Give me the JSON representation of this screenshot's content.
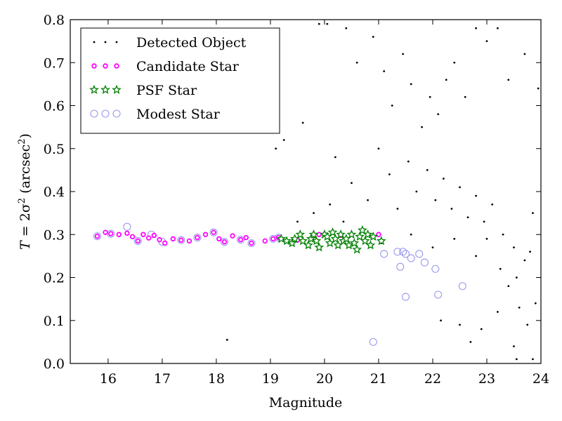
{
  "chart_data": {
    "type": "scatter",
    "xlabel": "Magnitude",
    "ylabel_parts": [
      "T",
      " = 2σ",
      "2",
      " (arcsec",
      "2",
      ")"
    ],
    "xlim": [
      15.3,
      24.0
    ],
    "ylim": [
      0.0,
      0.8
    ],
    "x_ticks": [
      "16",
      "17",
      "18",
      "19",
      "20",
      "21",
      "22",
      "23",
      "24"
    ],
    "y_ticks": [
      "0.0",
      "0.1",
      "0.2",
      "0.3",
      "0.4",
      "0.5",
      "0.6",
      "0.7",
      "0.8"
    ],
    "legend_location": "upper-left",
    "series": [
      {
        "name": "Detected Object",
        "marker": "dot",
        "color": "#000000",
        "note_sampled": true,
        "points": [
          [
            18.2,
            0.055
          ],
          [
            19.1,
            0.5
          ],
          [
            19.25,
            0.52
          ],
          [
            19.6,
            0.56
          ],
          [
            19.9,
            0.79
          ],
          [
            20.05,
            0.79
          ],
          [
            20.4,
            0.78
          ],
          [
            20.6,
            0.7
          ],
          [
            20.9,
            0.76
          ],
          [
            21.1,
            0.68
          ],
          [
            21.25,
            0.6
          ],
          [
            21.45,
            0.72
          ],
          [
            21.6,
            0.65
          ],
          [
            21.8,
            0.55
          ],
          [
            21.95,
            0.62
          ],
          [
            22.1,
            0.58
          ],
          [
            22.25,
            0.66
          ],
          [
            22.4,
            0.7
          ],
          [
            22.6,
            0.62
          ],
          [
            22.8,
            0.78
          ],
          [
            23.0,
            0.75
          ],
          [
            23.2,
            0.78
          ],
          [
            23.4,
            0.66
          ],
          [
            23.7,
            0.72
          ],
          [
            23.95,
            0.64
          ],
          [
            20.2,
            0.48
          ],
          [
            20.5,
            0.42
          ],
          [
            20.8,
            0.38
          ],
          [
            21.0,
            0.5
          ],
          [
            21.2,
            0.44
          ],
          [
            21.35,
            0.36
          ],
          [
            21.55,
            0.47
          ],
          [
            21.7,
            0.4
          ],
          [
            21.9,
            0.45
          ],
          [
            22.05,
            0.38
          ],
          [
            22.2,
            0.43
          ],
          [
            22.35,
            0.36
          ],
          [
            22.5,
            0.41
          ],
          [
            22.65,
            0.34
          ],
          [
            22.8,
            0.39
          ],
          [
            22.95,
            0.33
          ],
          [
            23.1,
            0.37
          ],
          [
            23.3,
            0.3
          ],
          [
            23.5,
            0.27
          ],
          [
            23.7,
            0.24
          ],
          [
            23.85,
            0.35
          ],
          [
            23.4,
            0.18
          ],
          [
            23.6,
            0.13
          ],
          [
            23.75,
            0.09
          ],
          [
            23.5,
            0.04
          ],
          [
            23.55,
            0.01
          ],
          [
            23.85,
            0.01
          ],
          [
            22.7,
            0.05
          ],
          [
            22.5,
            0.09
          ],
          [
            22.15,
            0.1
          ],
          [
            22.9,
            0.08
          ],
          [
            23.2,
            0.12
          ],
          [
            23.9,
            0.14
          ],
          [
            19.5,
            0.33
          ],
          [
            19.8,
            0.35
          ],
          [
            20.1,
            0.37
          ],
          [
            20.35,
            0.33
          ],
          [
            20.7,
            0.31
          ],
          [
            21.05,
            0.28
          ],
          [
            21.6,
            0.3
          ],
          [
            22.0,
            0.27
          ],
          [
            22.4,
            0.29
          ],
          [
            22.8,
            0.25
          ],
          [
            23.0,
            0.29
          ],
          [
            23.25,
            0.22
          ],
          [
            23.55,
            0.2
          ],
          [
            23.8,
            0.26
          ]
        ]
      },
      {
        "name": "Candidate Star",
        "marker": "small-circle",
        "color": "#ff00ff",
        "points": [
          [
            15.8,
            0.296
          ],
          [
            15.95,
            0.305
          ],
          [
            16.05,
            0.302
          ],
          [
            16.2,
            0.3
          ],
          [
            16.35,
            0.303
          ],
          [
            16.45,
            0.295
          ],
          [
            16.55,
            0.285
          ],
          [
            16.65,
            0.3
          ],
          [
            16.75,
            0.292
          ],
          [
            16.85,
            0.298
          ],
          [
            16.95,
            0.288
          ],
          [
            17.05,
            0.28
          ],
          [
            17.2,
            0.29
          ],
          [
            17.35,
            0.287
          ],
          [
            17.5,
            0.285
          ],
          [
            17.65,
            0.293
          ],
          [
            17.8,
            0.3
          ],
          [
            17.95,
            0.305
          ],
          [
            18.05,
            0.29
          ],
          [
            18.15,
            0.283
          ],
          [
            18.3,
            0.297
          ],
          [
            18.45,
            0.288
          ],
          [
            18.55,
            0.293
          ],
          [
            18.65,
            0.28
          ],
          [
            18.9,
            0.285
          ],
          [
            19.05,
            0.29
          ],
          [
            19.15,
            0.293
          ],
          [
            19.5,
            0.287
          ],
          [
            19.9,
            0.3
          ],
          [
            20.3,
            0.298
          ],
          [
            21.0,
            0.3
          ]
        ]
      },
      {
        "name": "PSF Star",
        "marker": "star",
        "color": "#008000",
        "points": [
          [
            19.2,
            0.29
          ],
          [
            19.3,
            0.285
          ],
          [
            19.4,
            0.28
          ],
          [
            19.45,
            0.29
          ],
          [
            19.55,
            0.3
          ],
          [
            19.6,
            0.285
          ],
          [
            19.7,
            0.275
          ],
          [
            19.75,
            0.29
          ],
          [
            19.8,
            0.3
          ],
          [
            19.85,
            0.285
          ],
          [
            19.9,
            0.27
          ],
          [
            20.0,
            0.3
          ],
          [
            20.05,
            0.295
          ],
          [
            20.1,
            0.28
          ],
          [
            20.15,
            0.305
          ],
          [
            20.2,
            0.29
          ],
          [
            20.25,
            0.275
          ],
          [
            20.3,
            0.3
          ],
          [
            20.35,
            0.285
          ],
          [
            20.4,
            0.29
          ],
          [
            20.45,
            0.275
          ],
          [
            20.5,
            0.3
          ],
          [
            20.55,
            0.28
          ],
          [
            20.6,
            0.265
          ],
          [
            20.65,
            0.295
          ],
          [
            20.7,
            0.31
          ],
          [
            20.75,
            0.285
          ],
          [
            20.8,
            0.3
          ],
          [
            20.85,
            0.275
          ],
          [
            20.9,
            0.295
          ],
          [
            21.05,
            0.285
          ]
        ]
      },
      {
        "name": "Modest Star",
        "marker": "open-circle",
        "color": "#9999ee",
        "points": [
          [
            15.8,
            0.296
          ],
          [
            16.05,
            0.302
          ],
          [
            16.35,
            0.318
          ],
          [
            16.55,
            0.285
          ],
          [
            16.8,
            0.3
          ],
          [
            17.0,
            0.283
          ],
          [
            17.35,
            0.287
          ],
          [
            17.65,
            0.293
          ],
          [
            17.95,
            0.305
          ],
          [
            18.15,
            0.283
          ],
          [
            18.45,
            0.288
          ],
          [
            18.65,
            0.28
          ],
          [
            19.05,
            0.29
          ],
          [
            19.15,
            0.293
          ],
          [
            21.1,
            0.255
          ],
          [
            21.35,
            0.26
          ],
          [
            21.4,
            0.225
          ],
          [
            21.45,
            0.26
          ],
          [
            21.5,
            0.255
          ],
          [
            21.6,
            0.245
          ],
          [
            21.75,
            0.255
          ],
          [
            21.85,
            0.235
          ],
          [
            22.05,
            0.22
          ],
          [
            22.1,
            0.16
          ],
          [
            22.55,
            0.18
          ],
          [
            21.5,
            0.155
          ],
          [
            20.9,
            0.05
          ]
        ]
      }
    ]
  }
}
